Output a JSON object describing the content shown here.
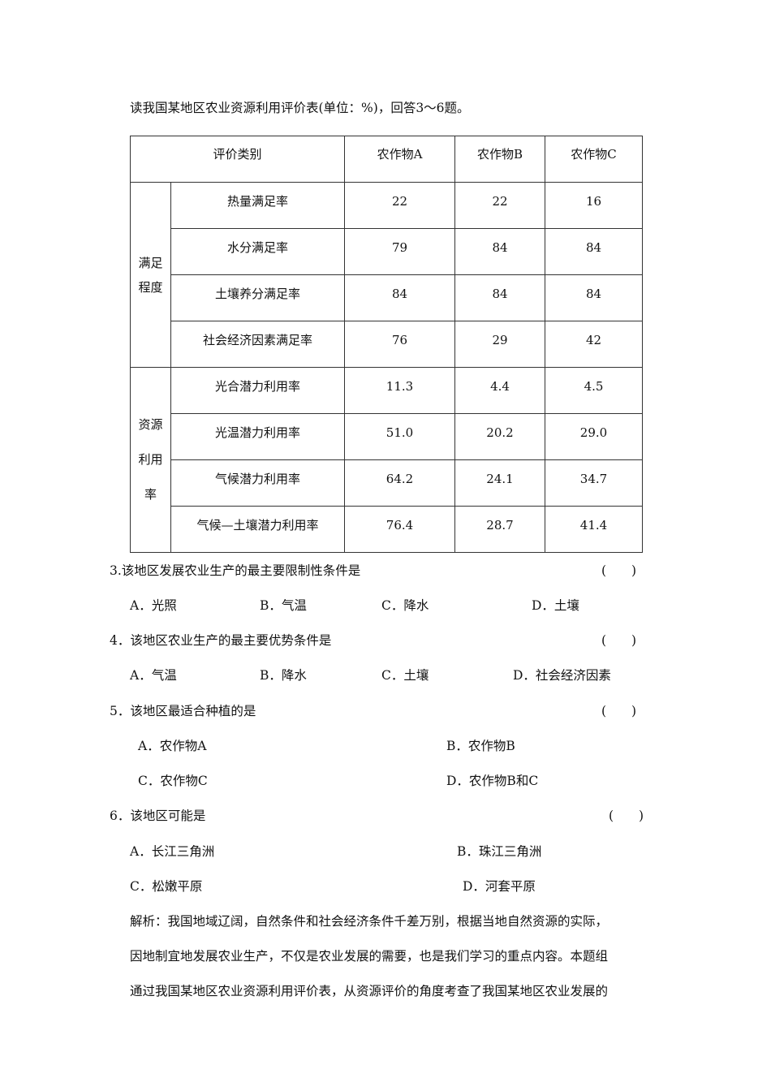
{
  "intro": "读我国某地区农业资源利用评价表(单位：%)，回答3～6题。",
  "table": {
    "header": [
      "评价类别",
      "农作物A",
      "农作物B",
      "农作物C"
    ],
    "groups": [
      {
        "label_lines": [
          "满足",
          "程度"
        ],
        "rows": [
          {
            "item": "热量满足率",
            "a": "22",
            "b": "22",
            "c": "16"
          },
          {
            "item": "水分满足率",
            "a": "79",
            "b": "84",
            "c": "84"
          },
          {
            "item": "土壤养分满足率",
            "a": "84",
            "b": "84",
            "c": "84"
          },
          {
            "item": "社会经济因素满足率",
            "a": "76",
            "b": "29",
            "c": "42"
          }
        ]
      },
      {
        "label_lines": [
          "资源",
          "利用",
          "率"
        ],
        "rows": [
          {
            "item": "光合潜力利用率",
            "a": "11.3",
            "b": "4.4",
            "c": "4.5"
          },
          {
            "item": "光温潜力利用率",
            "a": "51.0",
            "b": "20.2",
            "c": "29.0"
          },
          {
            "item": "气候潜力利用率",
            "a": "64.2",
            "b": "24.1",
            "c": "34.7"
          },
          {
            "item": "气候—土壤潜力利用率",
            "a": "76.4",
            "b": "28.7",
            "c": "41.4"
          }
        ]
      }
    ]
  },
  "questions": [
    {
      "stem": "3.该地区发展农业生产的最主要限制性条件是",
      "paren": "(　　)",
      "options": [
        "A．光照",
        "B．气温",
        "C．降水",
        "D．土壤"
      ]
    },
    {
      "stem": "4．该地区农业生产的最主要优势条件是",
      "paren": "(　　)",
      "options": [
        "A．气温",
        "B．降水",
        "C．土壤",
        "D．社会经济因素"
      ]
    },
    {
      "stem": "5．该地区最适合种植的是",
      "paren": "(　　)",
      "options": [
        "A．农作物A",
        "B．农作物B",
        "C．农作物C",
        "D．农作物B和C"
      ]
    },
    {
      "stem": "6．该地区可能是",
      "paren": "(　　)",
      "options": [
        "A．长江三角洲",
        "B．珠江三角洲",
        "C．松嫩平原",
        "D．河套平原"
      ]
    }
  ],
  "analysis": [
    "解析：我国地域辽阔，自然条件和社会经济条件千差万别，根据当地自然资源的实际，",
    "因地制宜地发展农业生产，不仅是农业发展的需要，也是我们学习的重点内容。本题组",
    "通过我国某地区农业资源利用评价表，从资源评价的角度考查了我国某地区农业发展的"
  ]
}
